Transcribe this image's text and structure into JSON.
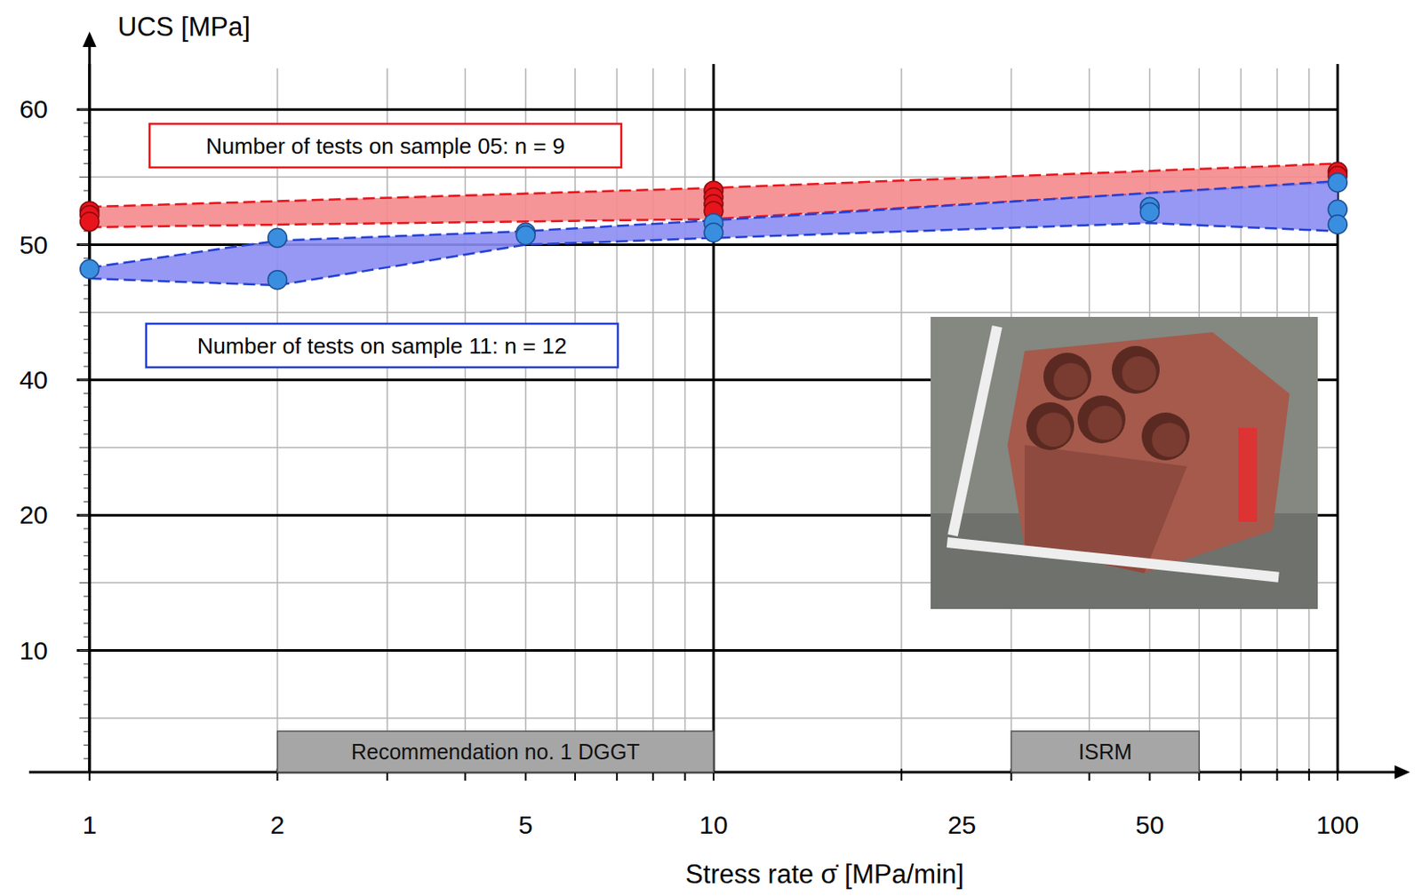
{
  "chart_data": {
    "type": "scatter",
    "x_label": "Stress rate σ̇ [MPa/min]",
    "y_label": "UCS [MPa]",
    "log": "x",
    "grid": true,
    "legend": "top-left",
    "xlim": [
      0.8,
      125
    ],
    "xticks": [
      1,
      2,
      5,
      10,
      25,
      50,
      100
    ],
    "ylim": [
      1,
      65
    ],
    "yticks": [
      10,
      20,
      40,
      50,
      60
    ],
    "series": [
      {
        "name": "Number of tests on sample 05: n = 9",
        "color": "#e8141c",
        "marker": "circle",
        "x": [
          1,
          1,
          1,
          10,
          10,
          10,
          10,
          100,
          100
        ],
        "values": [
          52.5,
          52.2,
          51.7,
          54.0,
          53.5,
          53.0,
          52.5,
          55.4,
          55.1
        ],
        "band": {
          "upper_x": [
            1,
            10,
            100
          ],
          "upper": [
            52.8,
            54.2,
            56.0
          ],
          "lower_x": [
            1,
            10,
            100
          ],
          "lower": [
            51.3,
            51.9,
            54.6
          ]
        }
      },
      {
        "name": "Number of tests on sample 11: n = 12",
        "color": "#3a8ee0",
        "marker": "circle",
        "x": [
          1,
          2,
          2,
          5,
          5,
          10,
          10,
          50,
          50,
          100,
          100,
          100
        ],
        "values": [
          48.2,
          50.5,
          47.4,
          50.9,
          50.7,
          51.6,
          50.9,
          52.8,
          52.4,
          54.6,
          52.6,
          51.5
        ],
        "band": {
          "upper_x": [
            1,
            2,
            5,
            10,
            100
          ],
          "upper": [
            48.3,
            50.3,
            51.0,
            51.8,
            54.7
          ],
          "lower_x": [
            1,
            2,
            5,
            10,
            50,
            100
          ],
          "lower": [
            47.5,
            47.0,
            50.0,
            50.5,
            51.6,
            51.0
          ]
        }
      }
    ],
    "annotations": [
      {
        "text": "Recommendation no. 1 DGGT",
        "x": [
          2,
          10
        ]
      },
      {
        "text": "ISRM",
        "x": [
          30,
          60
        ]
      }
    ]
  }
}
